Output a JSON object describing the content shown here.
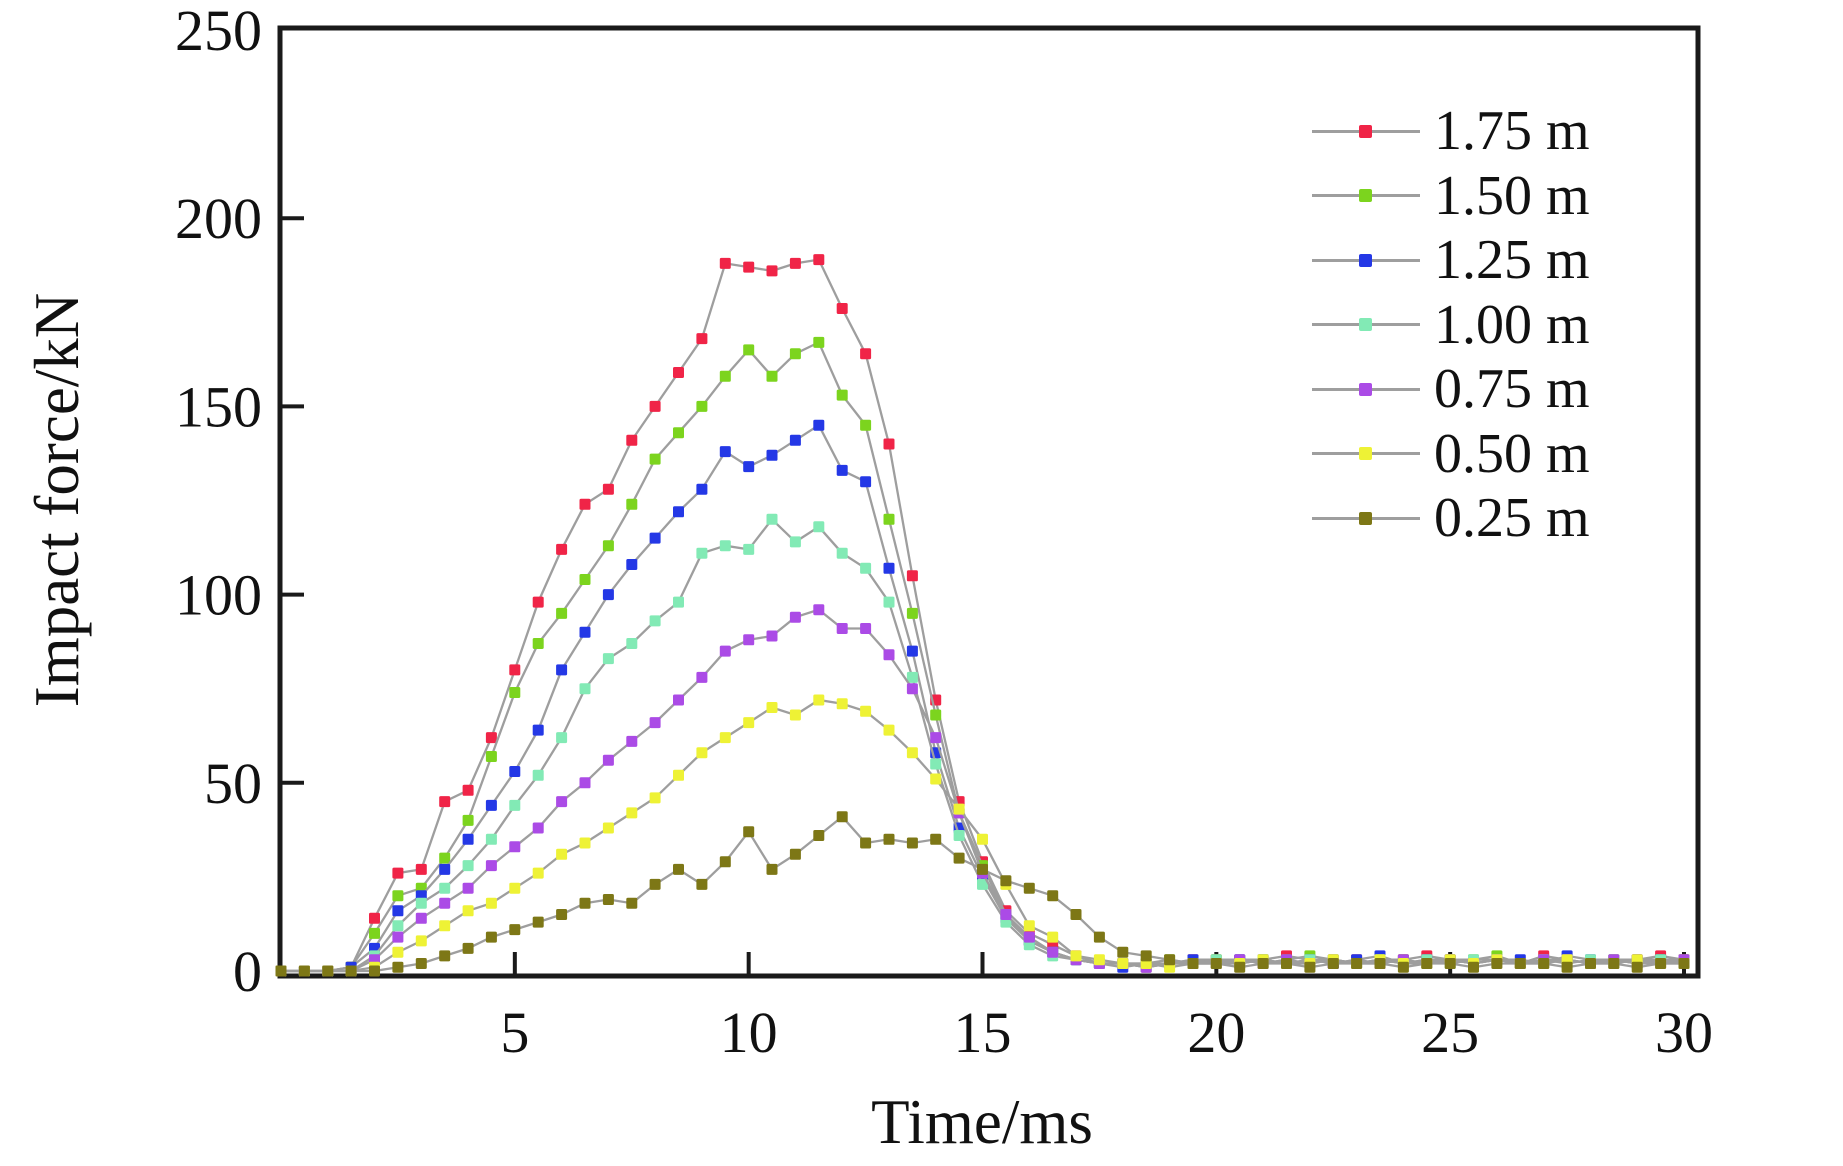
{
  "figure": {
    "background": "#ffffff",
    "axis_color": "#1a1a1a"
  },
  "chart_data": {
    "type": "line",
    "title": "",
    "xlabel": "Time/ms",
    "ylabel": "Impact force/kN",
    "xlim": [
      0,
      30
    ],
    "ylim": [
      0,
      250
    ],
    "xticks": [
      5,
      10,
      15,
      20,
      25,
      30
    ],
    "yticks": [
      0,
      50,
      100,
      150,
      200,
      250
    ],
    "grid": false,
    "legend_position": "upper-right",
    "marker": "square",
    "line_color": "#9e9e9e",
    "x_start": 0,
    "x_step": 0.5,
    "series": [
      {
        "name": "1.75 m",
        "color": "#f02447",
        "values": [
          0,
          0,
          0,
          1,
          14,
          26,
          27,
          45,
          48,
          62,
          80,
          98,
          112,
          124,
          128,
          141,
          150,
          159,
          168,
          188,
          187,
          186,
          188,
          189,
          176,
          164,
          140,
          105,
          72,
          45,
          29,
          16,
          10,
          7,
          4,
          2,
          2,
          1,
          2,
          3,
          3,
          2,
          3,
          4,
          3,
          2,
          3,
          2,
          3,
          4,
          3,
          2,
          3,
          2,
          4,
          3,
          2,
          3,
          3,
          4,
          3
        ]
      },
      {
        "name": "1.50 m",
        "color": "#7cd41e",
        "values": [
          0,
          0,
          0,
          1,
          10,
          20,
          22,
          30,
          40,
          57,
          74,
          87,
          95,
          104,
          113,
          124,
          136,
          143,
          150,
          158,
          165,
          158,
          164,
          167,
          153,
          145,
          120,
          95,
          68,
          42,
          28,
          15,
          8,
          5,
          3,
          2,
          2,
          2,
          3,
          2,
          3,
          3,
          2,
          3,
          4,
          3,
          2,
          3,
          3,
          2,
          3,
          3,
          4,
          2,
          3,
          3,
          2,
          3,
          2,
          3,
          3
        ]
      },
      {
        "name": "1.25 m",
        "color": "#2438e6",
        "values": [
          0,
          0,
          0,
          1,
          6,
          16,
          20,
          27,
          35,
          44,
          53,
          64,
          80,
          90,
          100,
          108,
          115,
          122,
          128,
          138,
          134,
          137,
          141,
          145,
          133,
          130,
          107,
          85,
          58,
          38,
          25,
          14,
          8,
          5,
          3,
          2,
          1,
          2,
          2,
          3,
          2,
          3,
          3,
          2,
          3,
          2,
          3,
          4,
          2,
          3,
          3,
          2,
          3,
          3,
          2,
          4,
          3,
          2,
          3,
          3,
          2
        ]
      },
      {
        "name": "1.00 m",
        "color": "#82eab5",
        "values": [
          0,
          0,
          0,
          0,
          4,
          12,
          18,
          22,
          28,
          35,
          44,
          52,
          62,
          75,
          83,
          87,
          93,
          98,
          111,
          113,
          112,
          120,
          114,
          118,
          111,
          107,
          98,
          78,
          55,
          36,
          23,
          13,
          7,
          4,
          3,
          2,
          2,
          1,
          2,
          2,
          3,
          2,
          3,
          2,
          3,
          3,
          2,
          3,
          2,
          3,
          2,
          3,
          3,
          2,
          3,
          2,
          3,
          3,
          2,
          3,
          2
        ]
      },
      {
        "name": "0.75 m",
        "color": "#ab4be6",
        "values": [
          0,
          0,
          0,
          0,
          3,
          9,
          14,
          18,
          22,
          28,
          33,
          38,
          45,
          50,
          56,
          61,
          66,
          72,
          78,
          85,
          88,
          89,
          94,
          96,
          91,
          91,
          84,
          75,
          62,
          42,
          26,
          15,
          9,
          5,
          3,
          2,
          2,
          1,
          2,
          2,
          2,
          3,
          2,
          3,
          2,
          3,
          2,
          2,
          3,
          2,
          3,
          2,
          3,
          2,
          3,
          3,
          2,
          3,
          2,
          2,
          3
        ]
      },
      {
        "name": "0.50 m",
        "color": "#eef235",
        "values": [
          0,
          0,
          0,
          0,
          1,
          5,
          8,
          12,
          16,
          18,
          22,
          26,
          31,
          34,
          38,
          42,
          46,
          52,
          58,
          62,
          66,
          70,
          68,
          72,
          71,
          69,
          64,
          58,
          51,
          43,
          35,
          23,
          12,
          9,
          4,
          3,
          2,
          2,
          1,
          2,
          2,
          2,
          3,
          2,
          2,
          3,
          2,
          3,
          2,
          2,
          3,
          2,
          3,
          2,
          2,
          3,
          2,
          2,
          3,
          2,
          2
        ]
      },
      {
        "name": "0.25 m",
        "color": "#7d7716",
        "values": [
          0,
          0,
          0,
          0,
          0,
          1,
          2,
          4,
          6,
          9,
          11,
          13,
          15,
          18,
          19,
          18,
          23,
          27,
          23,
          29,
          37,
          27,
          31,
          36,
          41,
          34,
          35,
          34,
          35,
          30,
          27,
          24,
          22,
          20,
          15,
          9,
          5,
          4,
          3,
          2,
          2,
          1,
          2,
          2,
          1,
          2,
          2,
          2,
          1,
          2,
          2,
          1,
          2,
          2,
          2,
          1,
          2,
          2,
          1,
          2,
          2
        ]
      }
    ]
  }
}
